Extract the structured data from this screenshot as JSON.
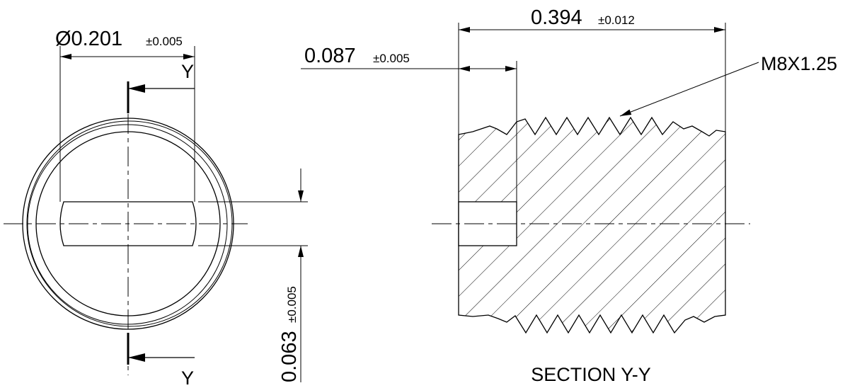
{
  "front_view": {
    "diameter": {
      "value": "Ø0.201",
      "tolerance": "±0.005"
    },
    "slot_width": {
      "value": "0.063",
      "tolerance": "±0.005"
    },
    "section_labels": [
      "Y",
      "Y"
    ]
  },
  "section_view": {
    "title": "SECTION Y-Y",
    "slot_depth": {
      "value": "0.087",
      "tolerance": "±0.005"
    },
    "length": {
      "value": "0.394",
      "tolerance": "±0.012"
    },
    "thread": "M8X1.25"
  }
}
